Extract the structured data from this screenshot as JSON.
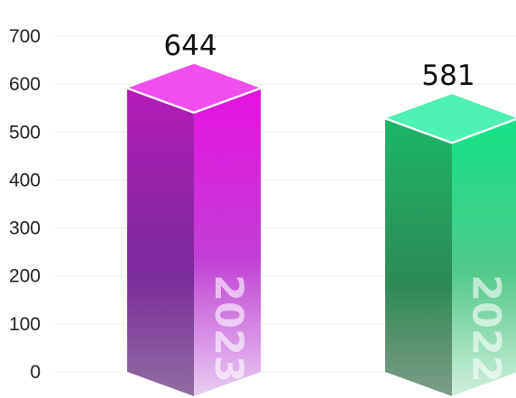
{
  "chart_data": {
    "type": "bar",
    "style": "3d-column",
    "categories": [
      "2023",
      "2022"
    ],
    "values": [
      644,
      581
    ],
    "ylim": [
      0,
      700
    ],
    "yticks": [
      0,
      100,
      200,
      300,
      400,
      500,
      600,
      700
    ],
    "grid": true,
    "colors": [
      "#c21fc8",
      "#1fc97a"
    ],
    "title": "",
    "xlabel": "",
    "ylabel": ""
  },
  "accent_colors": {
    "bar_2023_top": "#f04fee",
    "bar_2023_front": "#b51bb8",
    "bar_2023_side": "#e63ff0",
    "bar_2022_top": "#4ef0b4",
    "bar_2022_front": "#1aa85e",
    "bar_2022_side": "#18e088"
  }
}
